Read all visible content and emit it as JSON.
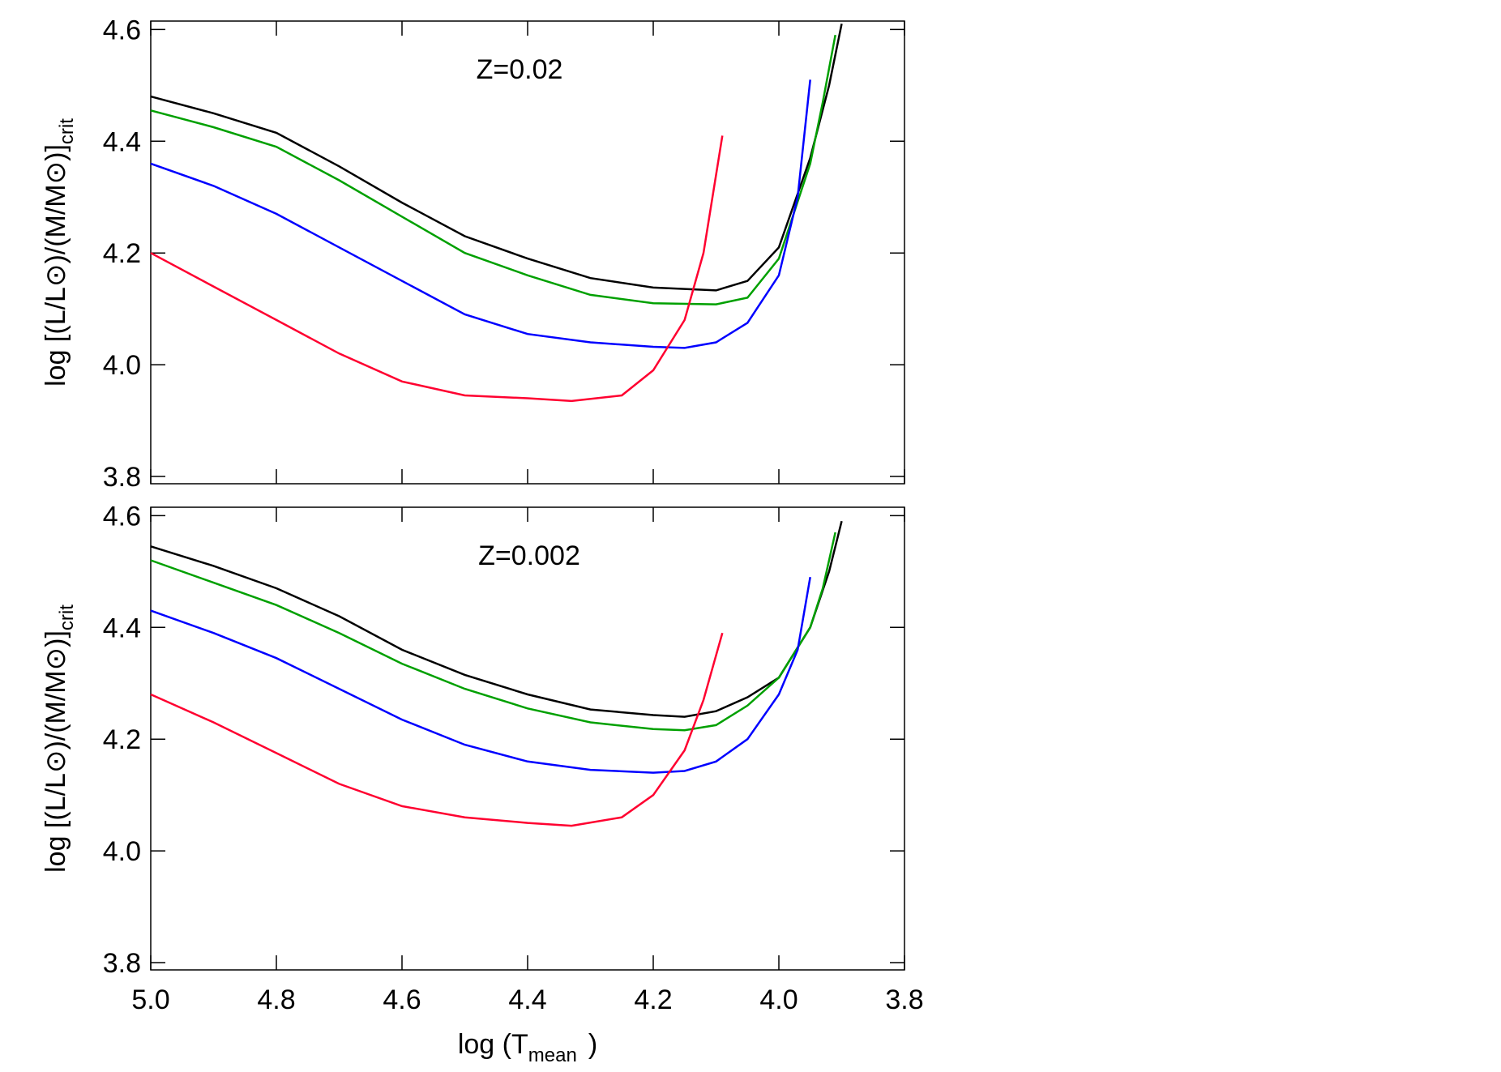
{
  "chart_data": [
    {
      "type": "line",
      "annotation": "Z=0.02",
      "ylabel": [
        "log [(L/L⊙)/(M/M⊙)]",
        "crit"
      ],
      "xlim": [
        5.0,
        3.8
      ],
      "ylim": [
        3.787,
        4.615
      ],
      "xticks": [
        5,
        4.8,
        4.6,
        4.4,
        4.2,
        4,
        3.8
      ],
      "yticks": [
        3.8,
        {
          "value": 4.0,
          "label": "4.0"
        },
        4.2,
        4.4,
        4.6
      ],
      "series": [
        {
          "color": "#000000",
          "x": [
            5.0,
            4.9,
            4.8,
            4.7,
            4.6,
            4.5,
            4.4,
            4.3,
            4.2,
            4.1,
            4.05,
            4.0,
            3.95,
            3.92,
            3.9
          ],
          "values": [
            4.48,
            4.45,
            4.415,
            4.355,
            4.29,
            4.23,
            4.19,
            4.155,
            4.138,
            4.133,
            4.15,
            4.21,
            4.37,
            4.5,
            4.61
          ]
        },
        {
          "color": "#00a000",
          "x": [
            5.0,
            4.9,
            4.8,
            4.7,
            4.6,
            4.5,
            4.4,
            4.3,
            4.2,
            4.1,
            4.05,
            4.0,
            3.95,
            3.93,
            3.91
          ],
          "values": [
            4.455,
            4.425,
            4.39,
            4.33,
            4.265,
            4.2,
            4.16,
            4.125,
            4.11,
            4.108,
            4.12,
            4.19,
            4.36,
            4.47,
            4.59
          ]
        },
        {
          "color": "#0000ff",
          "x": [
            5.0,
            4.9,
            4.8,
            4.7,
            4.6,
            4.5,
            4.4,
            4.3,
            4.2,
            4.15,
            4.1,
            4.05,
            4.0,
            3.97,
            3.95
          ],
          "values": [
            4.36,
            4.32,
            4.27,
            4.21,
            4.15,
            4.09,
            4.055,
            4.04,
            4.032,
            4.03,
            4.04,
            4.075,
            4.16,
            4.3,
            4.51
          ]
        },
        {
          "color": "#ff0030",
          "x": [
            5.0,
            4.9,
            4.8,
            4.7,
            4.6,
            4.5,
            4.4,
            4.33,
            4.25,
            4.2,
            4.15,
            4.12,
            4.09
          ],
          "values": [
            4.2,
            4.14,
            4.08,
            4.02,
            3.97,
            3.945,
            3.94,
            3.935,
            3.945,
            3.99,
            4.08,
            4.2,
            4.41
          ]
        }
      ]
    },
    {
      "type": "line",
      "annotation": "Z=0.002",
      "ylabel": [
        "log [(L/L⊙)/(M/M⊙)]",
        "crit"
      ],
      "xlabel": [
        "log (T",
        "mean",
        ")"
      ],
      "xlim": [
        5.0,
        3.8
      ],
      "ylim": [
        3.787,
        4.615
      ],
      "xticks": [
        {
          "value": 5.0,
          "label": "5.0"
        },
        4.8,
        4.6,
        4.4,
        4.2,
        {
          "value": 4.0,
          "label": "4.0"
        },
        3.8
      ],
      "yticks": [
        3.8,
        {
          "value": 4.0,
          "label": "4.0"
        },
        4.2,
        4.4,
        4.6
      ],
      "series": [
        {
          "color": "#000000",
          "x": [
            5.0,
            4.9,
            4.8,
            4.7,
            4.6,
            4.5,
            4.4,
            4.3,
            4.2,
            4.15,
            4.1,
            4.05,
            4.0,
            3.95,
            3.92,
            3.9
          ],
          "values": [
            4.545,
            4.51,
            4.47,
            4.42,
            4.36,
            4.315,
            4.28,
            4.253,
            4.243,
            4.24,
            4.25,
            4.275,
            4.31,
            4.4,
            4.5,
            4.59
          ]
        },
        {
          "color": "#00a000",
          "x": [
            5.0,
            4.9,
            4.8,
            4.7,
            4.6,
            4.5,
            4.4,
            4.3,
            4.2,
            4.15,
            4.1,
            4.05,
            4.0,
            3.95,
            3.93,
            3.91
          ],
          "values": [
            4.52,
            4.48,
            4.44,
            4.39,
            4.335,
            4.29,
            4.255,
            4.23,
            4.218,
            4.216,
            4.225,
            4.26,
            4.31,
            4.4,
            4.47,
            4.57
          ]
        },
        {
          "color": "#0000ff",
          "x": [
            5.0,
            4.9,
            4.8,
            4.7,
            4.6,
            4.5,
            4.4,
            4.3,
            4.2,
            4.15,
            4.1,
            4.05,
            4.0,
            3.97,
            3.95
          ],
          "values": [
            4.43,
            4.39,
            4.345,
            4.29,
            4.235,
            4.19,
            4.16,
            4.145,
            4.14,
            4.143,
            4.16,
            4.2,
            4.28,
            4.36,
            4.49
          ]
        },
        {
          "color": "#ff0030",
          "x": [
            5.0,
            4.9,
            4.8,
            4.7,
            4.6,
            4.5,
            4.4,
            4.33,
            4.25,
            4.2,
            4.15,
            4.12,
            4.09
          ],
          "values": [
            4.28,
            4.23,
            4.175,
            4.12,
            4.08,
            4.06,
            4.05,
            4.045,
            4.06,
            4.1,
            4.18,
            4.27,
            4.39
          ]
        }
      ]
    }
  ]
}
